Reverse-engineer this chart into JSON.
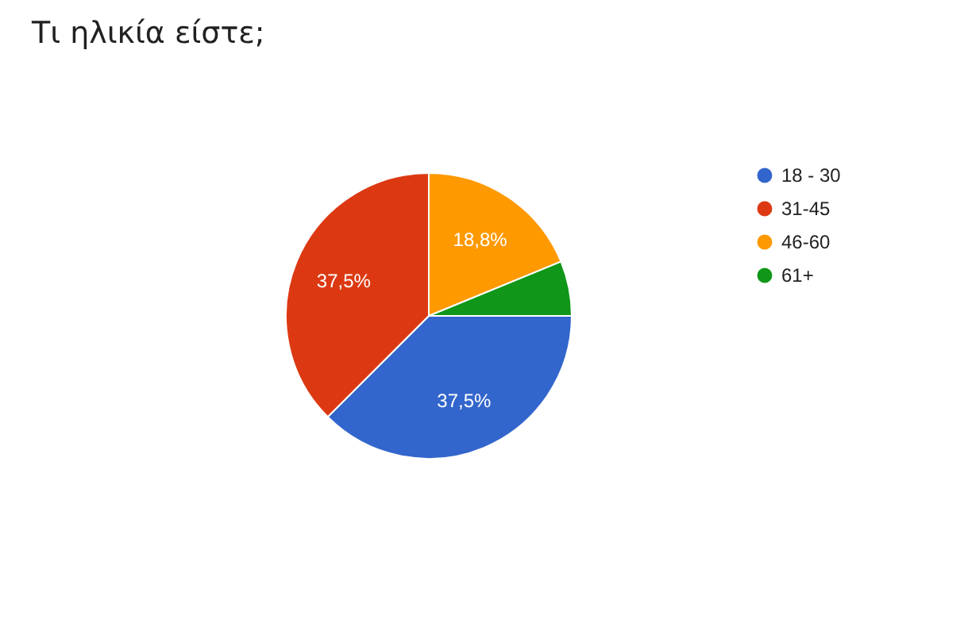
{
  "chart_data": {
    "type": "pie",
    "title": "Τι ηλικία είστε;",
    "categories": [
      "18 - 30",
      "31-45",
      "46-60",
      "61+"
    ],
    "values": [
      37.5,
      37.5,
      18.8,
      6.2
    ],
    "colors": [
      "#3366cc",
      "#dc3912",
      "#ff9900",
      "#109618"
    ],
    "value_labels": [
      "37,5%",
      "37,5%",
      "18,8%",
      null
    ],
    "legend": "right"
  }
}
